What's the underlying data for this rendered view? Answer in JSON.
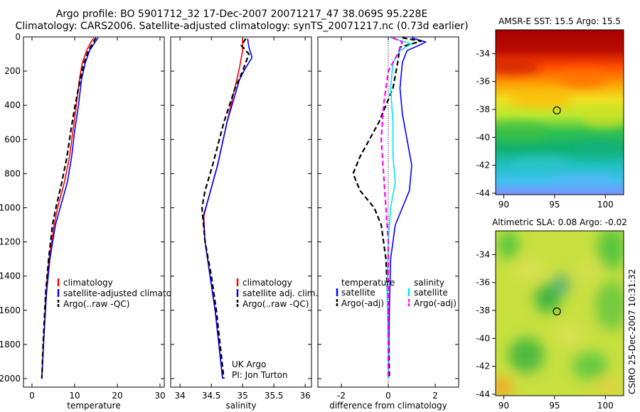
{
  "header": {
    "line1": "Argo profile: BO 5901712_32 17-Dec-2007 20071217_47 38.069S 95.228E",
    "line2": "Climatology: CARS2006. Satellite-adjusted climatology: synTS_20071217.nc (0.73d earlier)"
  },
  "colors": {
    "climatology": "#ff0000",
    "satellite": "#0000ff",
    "argo": "#000000",
    "sat_salinity": "#00e5ee",
    "argo_salinity_diff": "#ff00ff"
  },
  "chart_data": [
    {
      "type": "line",
      "id": "temperature",
      "xlabel": "temperature",
      "xlim": [
        -2,
        31
      ],
      "xticks": [
        0,
        10,
        20,
        30
      ],
      "ylim": [
        2050,
        0
      ],
      "yticks": [
        0,
        200,
        400,
        600,
        800,
        1000,
        1200,
        1400,
        1600,
        1800,
        2000
      ],
      "y_inverted": true,
      "legend": [
        "climatology",
        "satellite-adjusted climatology",
        "Argo(..raw -QC)"
      ],
      "series": [
        {
          "name": "climatology",
          "style": "solid",
          "color_key": "climatology",
          "points": [
            [
              14.5,
              5
            ],
            [
              13.8,
              30
            ],
            [
              12.8,
              80
            ],
            [
              11.8,
              150
            ],
            [
              11.1,
              250
            ],
            [
              10.4,
              400
            ],
            [
              9.6,
              550
            ],
            [
              8.8,
              700
            ],
            [
              7.6,
              850
            ],
            [
              6.0,
              1000
            ],
            [
              5.2,
              1100
            ],
            [
              4.0,
              1300
            ],
            [
              3.3,
              1500
            ],
            [
              2.7,
              1800
            ],
            [
              2.3,
              2000
            ]
          ]
        },
        {
          "name": "satellite-adjusted climatology",
          "style": "solid",
          "color_key": "satellite",
          "points": [
            [
              15.5,
              5
            ],
            [
              14.8,
              30
            ],
            [
              13.5,
              80
            ],
            [
              12.5,
              150
            ],
            [
              11.6,
              250
            ],
            [
              10.9,
              400
            ],
            [
              10.0,
              550
            ],
            [
              9.3,
              700
            ],
            [
              8.3,
              850
            ],
            [
              6.6,
              1000
            ],
            [
              5.5,
              1100
            ],
            [
              4.2,
              1300
            ],
            [
              3.4,
              1500
            ],
            [
              2.7,
              1800
            ],
            [
              2.3,
              2000
            ]
          ]
        },
        {
          "name": "Argo(..raw -QC)",
          "style": "dashed",
          "color_key": "argo",
          "points": [
            [
              15.0,
              5
            ],
            [
              14.4,
              30
            ],
            [
              13.2,
              80
            ],
            [
              12.2,
              150
            ],
            [
              11.3,
              250
            ],
            [
              10.1,
              400
            ],
            [
              9.1,
              550
            ],
            [
              8.2,
              700
            ],
            [
              7.0,
              850
            ],
            [
              5.6,
              1000
            ],
            [
              4.8,
              1100
            ],
            [
              3.9,
              1300
            ],
            [
              3.2,
              1500
            ],
            [
              2.6,
              1800
            ],
            [
              2.3,
              2000
            ]
          ]
        }
      ]
    },
    {
      "type": "line",
      "id": "salinity",
      "xlabel": "salinity",
      "xlim": [
        33.85,
        36.1
      ],
      "xticks": [
        34,
        34.5,
        35,
        35.5,
        36
      ],
      "ylim": [
        2050,
        0
      ],
      "y_inverted": true,
      "legend": [
        "climatology",
        "satellite adj. clim.",
        "Argo(..raw -QC)"
      ],
      "annotation": [
        "UK Argo",
        "PI: Jon Turton"
      ],
      "series": [
        {
          "name": "climatology",
          "style": "solid",
          "color_key": "climatology",
          "points": [
            [
              35.0,
              10
            ],
            [
              35.0,
              80
            ],
            [
              34.95,
              180
            ],
            [
              34.9,
              260
            ],
            [
              34.75,
              500
            ],
            [
              34.6,
              750
            ],
            [
              34.45,
              950
            ],
            [
              34.38,
              1050
            ],
            [
              34.4,
              1200
            ],
            [
              34.48,
              1400
            ],
            [
              34.56,
              1600
            ],
            [
              34.62,
              1800
            ],
            [
              34.68,
              2000
            ]
          ]
        },
        {
          "name": "satellite adj. clim.",
          "style": "solid",
          "color_key": "satellite",
          "points": [
            [
              35.08,
              10
            ],
            [
              35.1,
              60
            ],
            [
              35.15,
              120
            ],
            [
              35.05,
              180
            ],
            [
              34.95,
              250
            ],
            [
              34.75,
              500
            ],
            [
              34.6,
              750
            ],
            [
              34.45,
              950
            ],
            [
              34.37,
              1050
            ],
            [
              34.4,
              1200
            ],
            [
              34.48,
              1400
            ],
            [
              34.56,
              1600
            ],
            [
              34.62,
              1800
            ],
            [
              34.68,
              2000
            ]
          ]
        },
        {
          "name": "Argo(..raw -QC)",
          "style": "dashed",
          "color_key": "argo",
          "points": [
            [
              35.05,
              10
            ],
            [
              34.98,
              50
            ],
            [
              35.1,
              100
            ],
            [
              35.0,
              200
            ],
            [
              34.88,
              300
            ],
            [
              34.7,
              500
            ],
            [
              34.52,
              750
            ],
            [
              34.4,
              900
            ],
            [
              34.35,
              1000
            ],
            [
              34.4,
              1200
            ],
            [
              34.5,
              1400
            ],
            [
              34.58,
              1600
            ],
            [
              34.64,
              1800
            ],
            [
              34.7,
              2000
            ]
          ]
        }
      ]
    },
    {
      "type": "line",
      "id": "difference",
      "xlabel": "difference from climatology",
      "xlim": [
        -3.0,
        3.0
      ],
      "xticks": [
        -2,
        0,
        2
      ],
      "ylim": [
        2050,
        0
      ],
      "y_inverted": true,
      "legend_headers": [
        "temperature",
        "salinity"
      ],
      "legend_temperature": [
        "satellite",
        "Argo(-adj)"
      ],
      "legend_salinity": [
        "satellite",
        "Argo(-adj)"
      ],
      "series": [
        {
          "name": "temperature satellite",
          "style": "solid",
          "color_key": "satellite",
          "points": [
            [
              1.0,
              5
            ],
            [
              1.6,
              30
            ],
            [
              1.3,
              50
            ],
            [
              0.8,
              80
            ],
            [
              0.6,
              150
            ],
            [
              0.5,
              300
            ],
            [
              0.6,
              450
            ],
            [
              0.8,
              600
            ],
            [
              1.0,
              750
            ],
            [
              0.9,
              900
            ],
            [
              0.6,
              1000
            ],
            [
              0.3,
              1100
            ],
            [
              0.1,
              1300
            ],
            [
              0.05,
              1600
            ],
            [
              0.0,
              2000
            ]
          ]
        },
        {
          "name": "temperature Argo(-adj)",
          "style": "dashed",
          "color_key": "argo",
          "points": [
            [
              0.6,
              5
            ],
            [
              1.4,
              25
            ],
            [
              0.5,
              60
            ],
            [
              0.4,
              150
            ],
            [
              0.2,
              300
            ],
            [
              -0.4,
              500
            ],
            [
              -1.2,
              700
            ],
            [
              -1.5,
              800
            ],
            [
              -1.2,
              900
            ],
            [
              -0.6,
              1000
            ],
            [
              -0.3,
              1100
            ],
            [
              -0.1,
              1300
            ],
            [
              0.0,
              1600
            ],
            [
              0.05,
              2000
            ]
          ]
        },
        {
          "name": "salinity satellite",
          "style": "solid",
          "color_key": "sat_salinity",
          "points": [
            [
              0.1,
              5
            ],
            [
              1.0,
              40
            ],
            [
              0.5,
              80
            ],
            [
              0.2,
              150
            ],
            [
              0.1,
              300
            ],
            [
              0.2,
              500
            ],
            [
              0.2,
              700
            ],
            [
              0.3,
              850
            ],
            [
              0.1,
              1000
            ],
            [
              0.0,
              1200
            ],
            [
              -0.05,
              1500
            ],
            [
              0.0,
              1800
            ],
            [
              0.0,
              2000
            ]
          ]
        },
        {
          "name": "salinity Argo(-adj)",
          "style": "dashed",
          "color_key": "argo_salinity_diff",
          "points": [
            [
              0.2,
              5
            ],
            [
              0.6,
              30
            ],
            [
              0.4,
              100
            ],
            [
              0.0,
              200
            ],
            [
              -0.2,
              400
            ],
            [
              -0.3,
              600
            ],
            [
              -0.2,
              800
            ],
            [
              -0.1,
              1000
            ],
            [
              0.0,
              1200
            ],
            [
              0.0,
              1600
            ],
            [
              0.0,
              2000
            ]
          ]
        }
      ]
    },
    {
      "type": "heatmap",
      "id": "sst-map",
      "title": "AMSR-E SST: 15.5 Argo: 15.5",
      "xlim": [
        89.2,
        101.8
      ],
      "ylim": [
        -44.1,
        -32.3
      ],
      "xticks": [
        90,
        95,
        100
      ],
      "yticks": [
        -34,
        -36,
        -38,
        -40,
        -42,
        -44
      ],
      "marker": {
        "lon": 95.228,
        "lat": -38.069
      }
    },
    {
      "type": "heatmap",
      "id": "sla-map",
      "title": "Altimetric SLA: 0.08 Argo: -0.02",
      "xlim": [
        89.2,
        101.8
      ],
      "ylim": [
        -44.1,
        -32.3
      ],
      "xticks": [
        90,
        95,
        100
      ],
      "yticks": [
        -34,
        -36,
        -38,
        -40,
        -42,
        -44
      ],
      "marker": {
        "lon": 95.228,
        "lat": -38.069
      }
    }
  ],
  "footer_stamp": "CSIRO 25-Dec-2007 10:31:32"
}
